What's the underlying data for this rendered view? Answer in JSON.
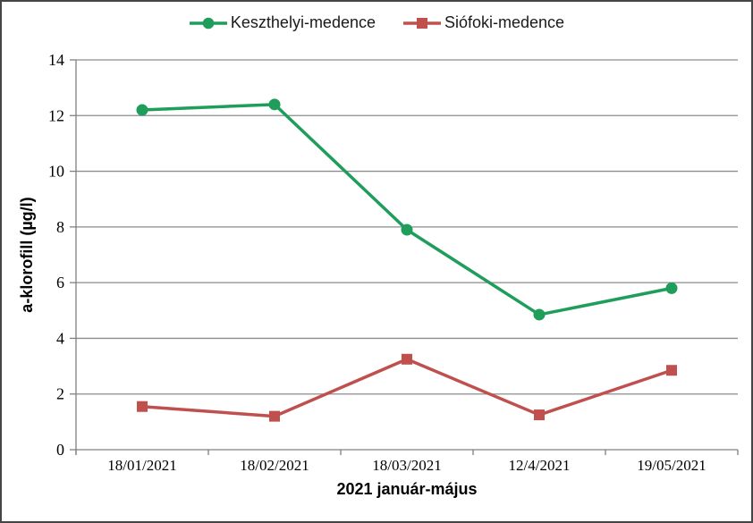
{
  "chart_data": {
    "type": "line",
    "categories": [
      "18/01/2021",
      "18/02/2021",
      "18/03/2021",
      "12/4/2021",
      "19/05/2021"
    ],
    "series": [
      {
        "name": "Keszthelyi-medence",
        "color": "#1F9D5B",
        "marker": "circle",
        "values": [
          12.2,
          12.4,
          7.9,
          4.85,
          5.8
        ]
      },
      {
        "name": "Siófoki-medence",
        "color": "#C0504D",
        "marker": "square",
        "values": [
          1.55,
          1.2,
          3.25,
          1.25,
          2.85
        ]
      }
    ],
    "xlabel": "2021 január-május",
    "ylabel": "a-klorofill (µg/l)",
    "ylim": [
      0,
      14
    ],
    "ytick_step": 2,
    "grid": true,
    "legend_position": "top",
    "gridline_color": "#8C8C8C",
    "axis_color": "#808080",
    "text_color": "#000000"
  }
}
